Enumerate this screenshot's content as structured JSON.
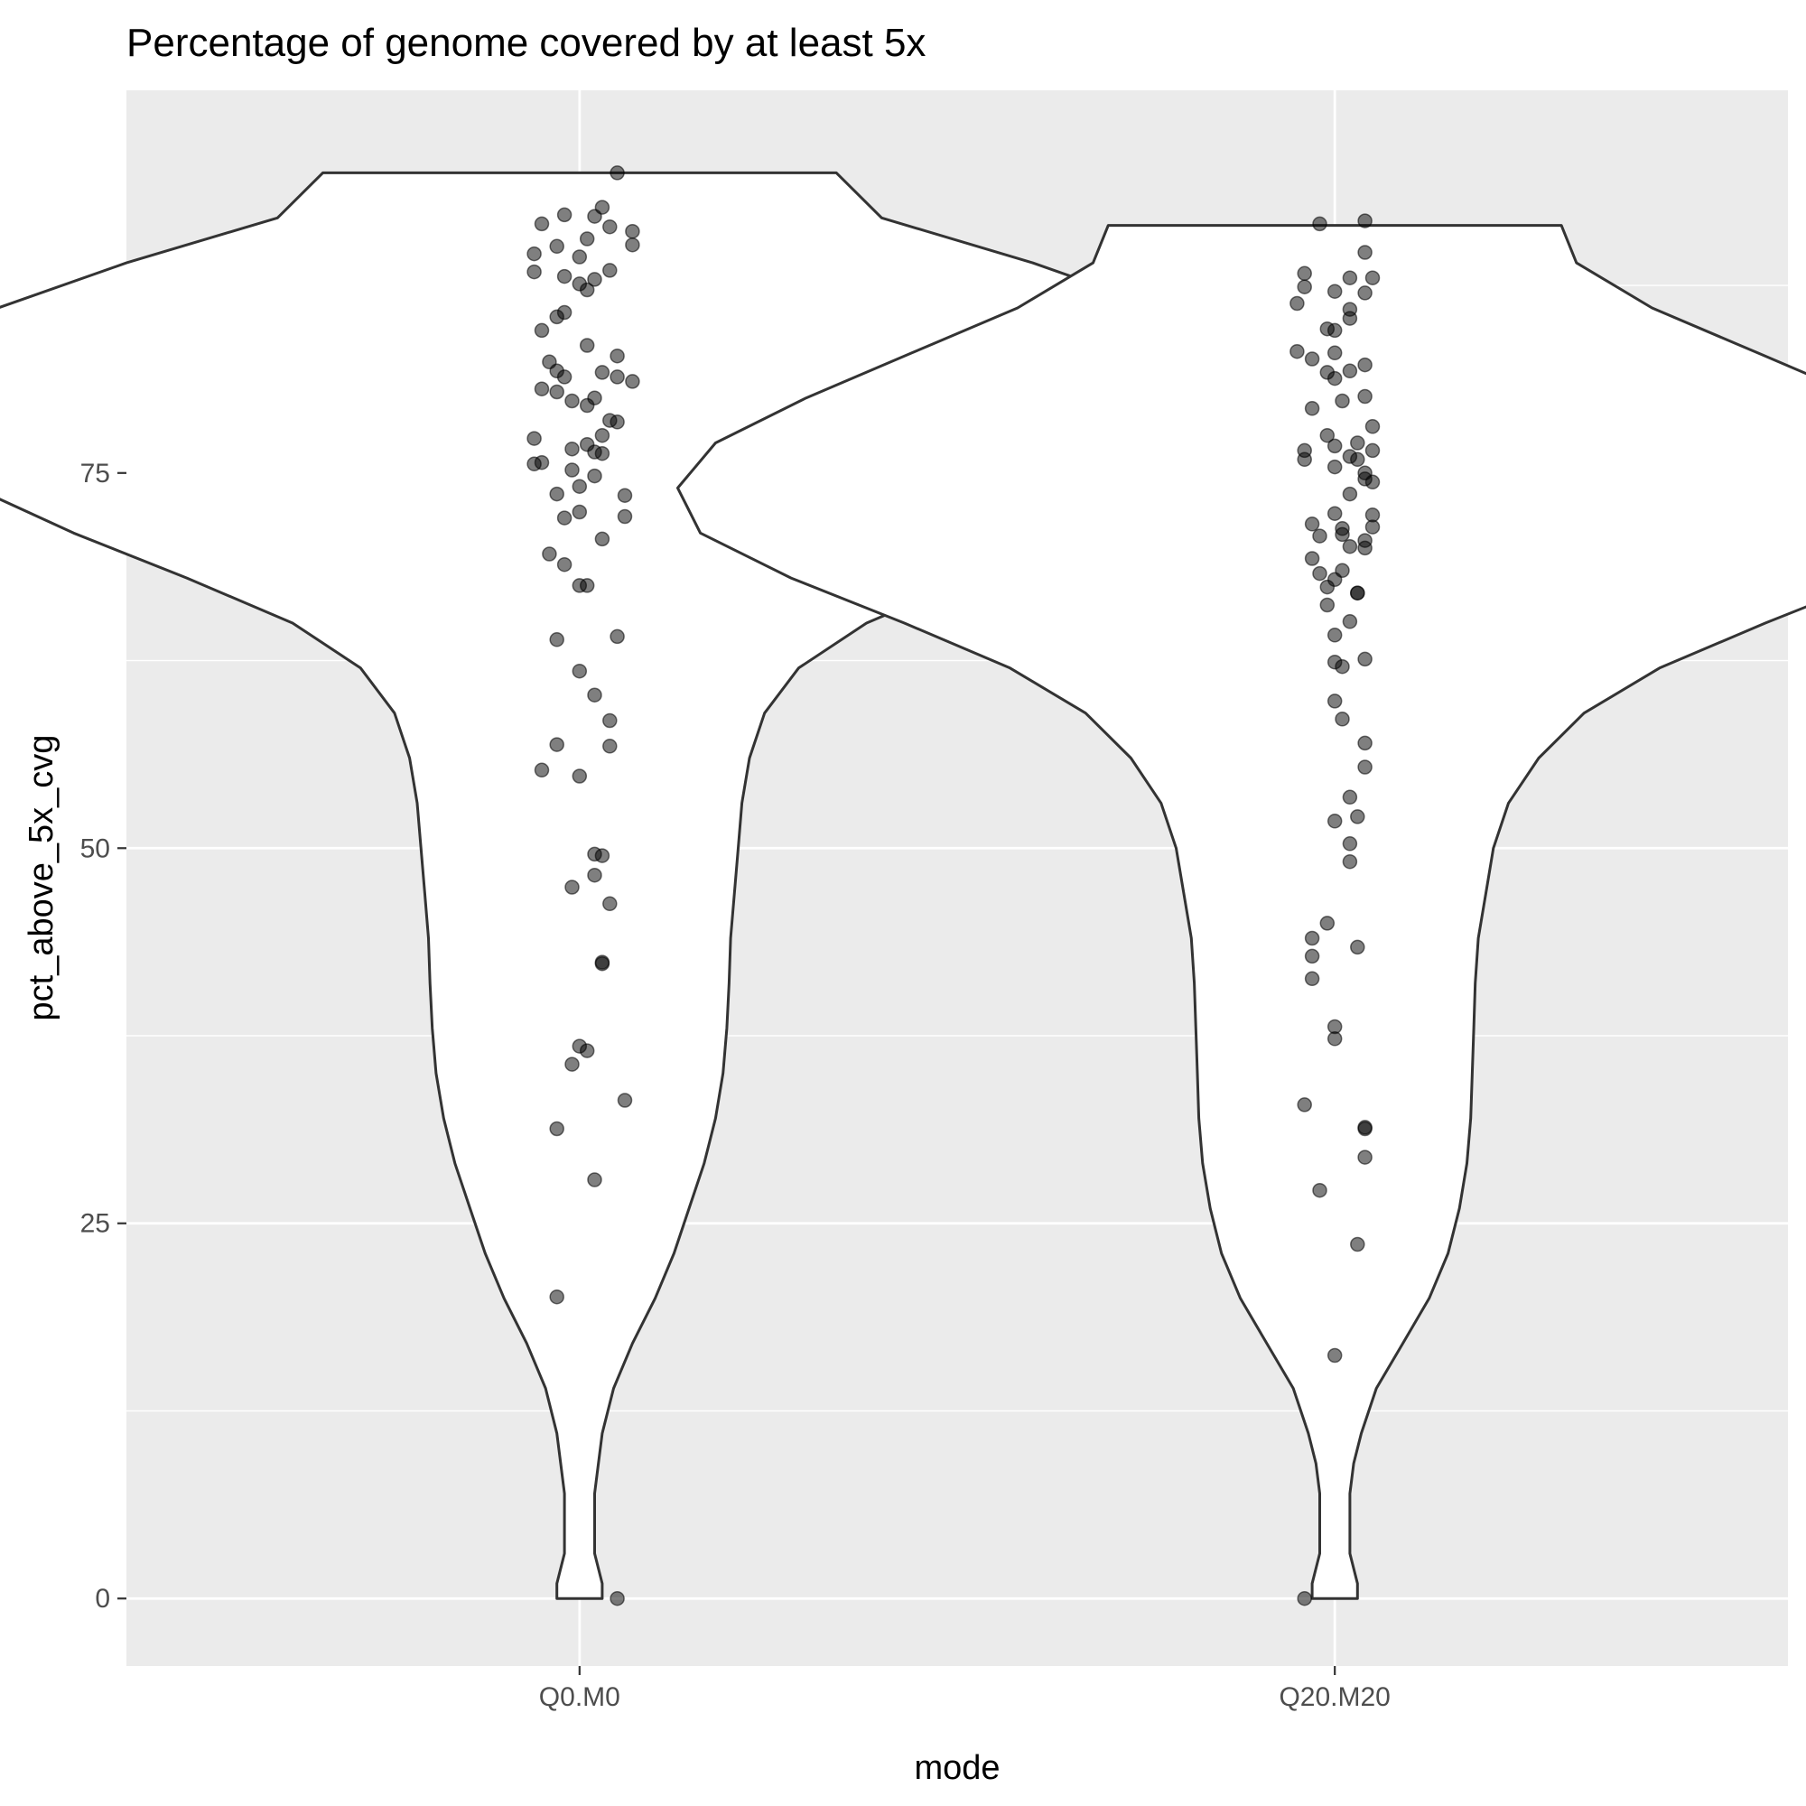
{
  "chart_data": {
    "type": "violin",
    "title": "Percentage of genome covered by at least 5x",
    "xlabel": "mode",
    "ylabel": "pct_above_5x_cvg",
    "categories": [
      "Q0.M0",
      "Q20.M20"
    ],
    "y_ticks": [
      "0",
      "25",
      "50",
      "75"
    ],
    "ylim": [
      -4.5,
      100.5
    ],
    "grid": true,
    "legend": "none",
    "colors": {
      "panel": "#ebebeb",
      "grid": "#ffffff",
      "violin_fill": "#ffffff",
      "violin_outline": "#333333",
      "point": "#000000"
    },
    "violin_profiles": [
      {
        "name": "Q0.M0",
        "y": [
          0,
          1,
          3,
          5,
          7,
          9,
          11,
          14,
          17,
          20,
          23,
          26,
          29,
          32,
          35,
          38,
          41,
          44,
          47,
          50,
          53,
          56,
          59,
          62,
          65,
          68,
          71,
          74,
          77,
          80,
          83,
          86,
          89,
          92,
          95
        ],
        "halfwidth": [
          0.03,
          0.03,
          0.02,
          0.02,
          0.02,
          0.025,
          0.03,
          0.045,
          0.07,
          0.1,
          0.125,
          0.145,
          0.165,
          0.18,
          0.19,
          0.195,
          0.198,
          0.2,
          0.205,
          0.21,
          0.215,
          0.225,
          0.245,
          0.29,
          0.38,
          0.52,
          0.67,
          0.8,
          0.88,
          0.9,
          0.87,
          0.77,
          0.6,
          0.4,
          0.34
        ]
      },
      {
        "name": "Q20.M20",
        "y": [
          0,
          1,
          3,
          5,
          7,
          9,
          11,
          14,
          17,
          20,
          23,
          26,
          29,
          32,
          35,
          38,
          41,
          44,
          47,
          50,
          53,
          56,
          59,
          62,
          65,
          68,
          71,
          74,
          77,
          80,
          83,
          86,
          89,
          91.5
        ],
        "halfwidth": [
          0.03,
          0.03,
          0.02,
          0.02,
          0.02,
          0.025,
          0.035,
          0.055,
          0.09,
          0.125,
          0.15,
          0.165,
          0.175,
          0.18,
          0.182,
          0.184,
          0.186,
          0.19,
          0.2,
          0.21,
          0.23,
          0.27,
          0.33,
          0.43,
          0.57,
          0.72,
          0.84,
          0.87,
          0.82,
          0.7,
          0.56,
          0.42,
          0.32,
          0.3
        ]
      }
    ],
    "series": [
      {
        "name": "Q0.M0",
        "points": [
          [
            0.05,
            95.0
          ],
          [
            0.03,
            92.7
          ],
          [
            -0.02,
            92.2
          ],
          [
            0.02,
            92.1
          ],
          [
            -0.05,
            91.6
          ],
          [
            0.04,
            91.4
          ],
          [
            0.07,
            91.1
          ],
          [
            0.01,
            90.6
          ],
          [
            -0.03,
            90.1
          ],
          [
            0.07,
            90.2
          ],
          [
            -0.06,
            89.6
          ],
          [
            0.0,
            89.4
          ],
          [
            -0.06,
            88.4
          ],
          [
            0.04,
            88.5
          ],
          [
            -0.02,
            88.1
          ],
          [
            0.02,
            87.9
          ],
          [
            0.0,
            87.6
          ],
          [
            0.01,
            87.2
          ],
          [
            -0.02,
            85.7
          ],
          [
            -0.03,
            85.4
          ],
          [
            -0.05,
            84.5
          ],
          [
            0.01,
            83.5
          ],
          [
            0.05,
            82.8
          ],
          [
            -0.04,
            82.4
          ],
          [
            -0.03,
            81.8
          ],
          [
            0.03,
            81.7
          ],
          [
            -0.02,
            81.4
          ],
          [
            0.05,
            81.4
          ],
          [
            0.07,
            81.1
          ],
          [
            -0.05,
            80.6
          ],
          [
            -0.03,
            80.4
          ],
          [
            0.02,
            80.0
          ],
          [
            -0.01,
            79.8
          ],
          [
            0.01,
            79.5
          ],
          [
            0.04,
            78.5
          ],
          [
            0.05,
            78.4
          ],
          [
            0.03,
            77.5
          ],
          [
            -0.06,
            77.3
          ],
          [
            0.01,
            76.9
          ],
          [
            -0.01,
            76.6
          ],
          [
            0.02,
            76.4
          ],
          [
            0.03,
            76.3
          ],
          [
            -0.05,
            75.7
          ],
          [
            -0.06,
            75.6
          ],
          [
            -0.01,
            75.2
          ],
          [
            0.02,
            74.8
          ],
          [
            0.0,
            74.1
          ],
          [
            -0.03,
            73.6
          ],
          [
            0.06,
            73.5
          ],
          [
            0.0,
            72.4
          ],
          [
            -0.02,
            72.0
          ],
          [
            0.06,
            72.1
          ],
          [
            0.03,
            70.6
          ],
          [
            -0.04,
            69.6
          ],
          [
            -0.02,
            68.9
          ],
          [
            0.0,
            67.5
          ],
          [
            0.01,
            67.5
          ],
          [
            0.05,
            64.1
          ],
          [
            -0.03,
            63.9
          ],
          [
            0.0,
            61.8
          ],
          [
            0.02,
            60.2
          ],
          [
            0.04,
            58.5
          ],
          [
            -0.03,
            56.9
          ],
          [
            0.04,
            56.8
          ],
          [
            -0.05,
            55.2
          ],
          [
            0.0,
            54.8
          ],
          [
            0.02,
            49.6
          ],
          [
            0.03,
            49.5
          ],
          [
            0.02,
            48.2
          ],
          [
            -0.01,
            47.4
          ],
          [
            0.04,
            46.3
          ],
          [
            0.03,
            42.4
          ],
          [
            0.03,
            42.3
          ],
          [
            0.0,
            36.8
          ],
          [
            0.01,
            36.5
          ],
          [
            -0.01,
            35.6
          ],
          [
            0.06,
            33.2
          ],
          [
            -0.03,
            31.3
          ],
          [
            0.02,
            27.9
          ],
          [
            -0.03,
            20.1
          ],
          [
            0.05,
            0.0
          ]
        ]
      },
      {
        "name": "Q20.M20",
        "points": [
          [
            0.04,
            91.8
          ],
          [
            -0.02,
            91.6
          ],
          [
            0.04,
            89.7
          ],
          [
            -0.04,
            88.3
          ],
          [
            0.05,
            88.0
          ],
          [
            0.02,
            88.0
          ],
          [
            -0.04,
            87.4
          ],
          [
            0.0,
            87.1
          ],
          [
            0.04,
            87.0
          ],
          [
            -0.05,
            86.3
          ],
          [
            0.02,
            85.9
          ],
          [
            0.02,
            85.3
          ],
          [
            -0.01,
            84.6
          ],
          [
            0.0,
            84.5
          ],
          [
            -0.05,
            83.1
          ],
          [
            0.0,
            83.0
          ],
          [
            -0.03,
            82.6
          ],
          [
            0.04,
            82.2
          ],
          [
            0.02,
            81.8
          ],
          [
            -0.01,
            81.7
          ],
          [
            0.0,
            81.3
          ],
          [
            0.04,
            80.1
          ],
          [
            0.01,
            79.8
          ],
          [
            -0.03,
            79.3
          ],
          [
            0.05,
            78.1
          ],
          [
            -0.01,
            77.5
          ],
          [
            0.03,
            77.0
          ],
          [
            0.0,
            76.8
          ],
          [
            0.05,
            76.5
          ],
          [
            -0.04,
            76.5
          ],
          [
            0.02,
            76.1
          ],
          [
            -0.04,
            75.9
          ],
          [
            0.03,
            75.9
          ],
          [
            0.0,
            75.4
          ],
          [
            0.04,
            75.0
          ],
          [
            0.04,
            74.6
          ],
          [
            0.05,
            74.4
          ],
          [
            0.02,
            73.6
          ],
          [
            0.05,
            72.2
          ],
          [
            0.0,
            72.3
          ],
          [
            -0.03,
            71.6
          ],
          [
            0.05,
            71.4
          ],
          [
            0.01,
            71.3
          ],
          [
            0.01,
            70.9
          ],
          [
            -0.02,
            70.8
          ],
          [
            0.04,
            70.5
          ],
          [
            0.02,
            70.1
          ],
          [
            0.04,
            70.0
          ],
          [
            -0.03,
            69.3
          ],
          [
            -0.02,
            68.3
          ],
          [
            0.01,
            68.5
          ],
          [
            0.0,
            67.9
          ],
          [
            -0.01,
            67.4
          ],
          [
            0.03,
            67.0
          ],
          [
            0.03,
            67.0
          ],
          [
            -0.01,
            66.2
          ],
          [
            0.02,
            65.1
          ],
          [
            0.0,
            64.2
          ],
          [
            0.04,
            62.6
          ],
          [
            0.0,
            62.4
          ],
          [
            0.01,
            62.1
          ],
          [
            0.0,
            59.8
          ],
          [
            0.01,
            58.6
          ],
          [
            0.04,
            57.0
          ],
          [
            0.04,
            55.4
          ],
          [
            0.02,
            53.4
          ],
          [
            0.03,
            52.1
          ],
          [
            0.0,
            51.8
          ],
          [
            0.02,
            50.3
          ],
          [
            0.02,
            49.1
          ],
          [
            -0.01,
            45.0
          ],
          [
            -0.03,
            44.0
          ],
          [
            0.03,
            43.4
          ],
          [
            -0.03,
            42.8
          ],
          [
            -0.03,
            41.3
          ],
          [
            0.0,
            38.1
          ],
          [
            0.0,
            37.3
          ],
          [
            -0.04,
            32.9
          ],
          [
            0.04,
            31.4
          ],
          [
            0.04,
            31.3
          ],
          [
            0.04,
            29.4
          ],
          [
            -0.02,
            27.2
          ],
          [
            0.03,
            23.6
          ],
          [
            0.0,
            16.2
          ],
          [
            -0.04,
            0.0
          ]
        ]
      }
    ]
  }
}
